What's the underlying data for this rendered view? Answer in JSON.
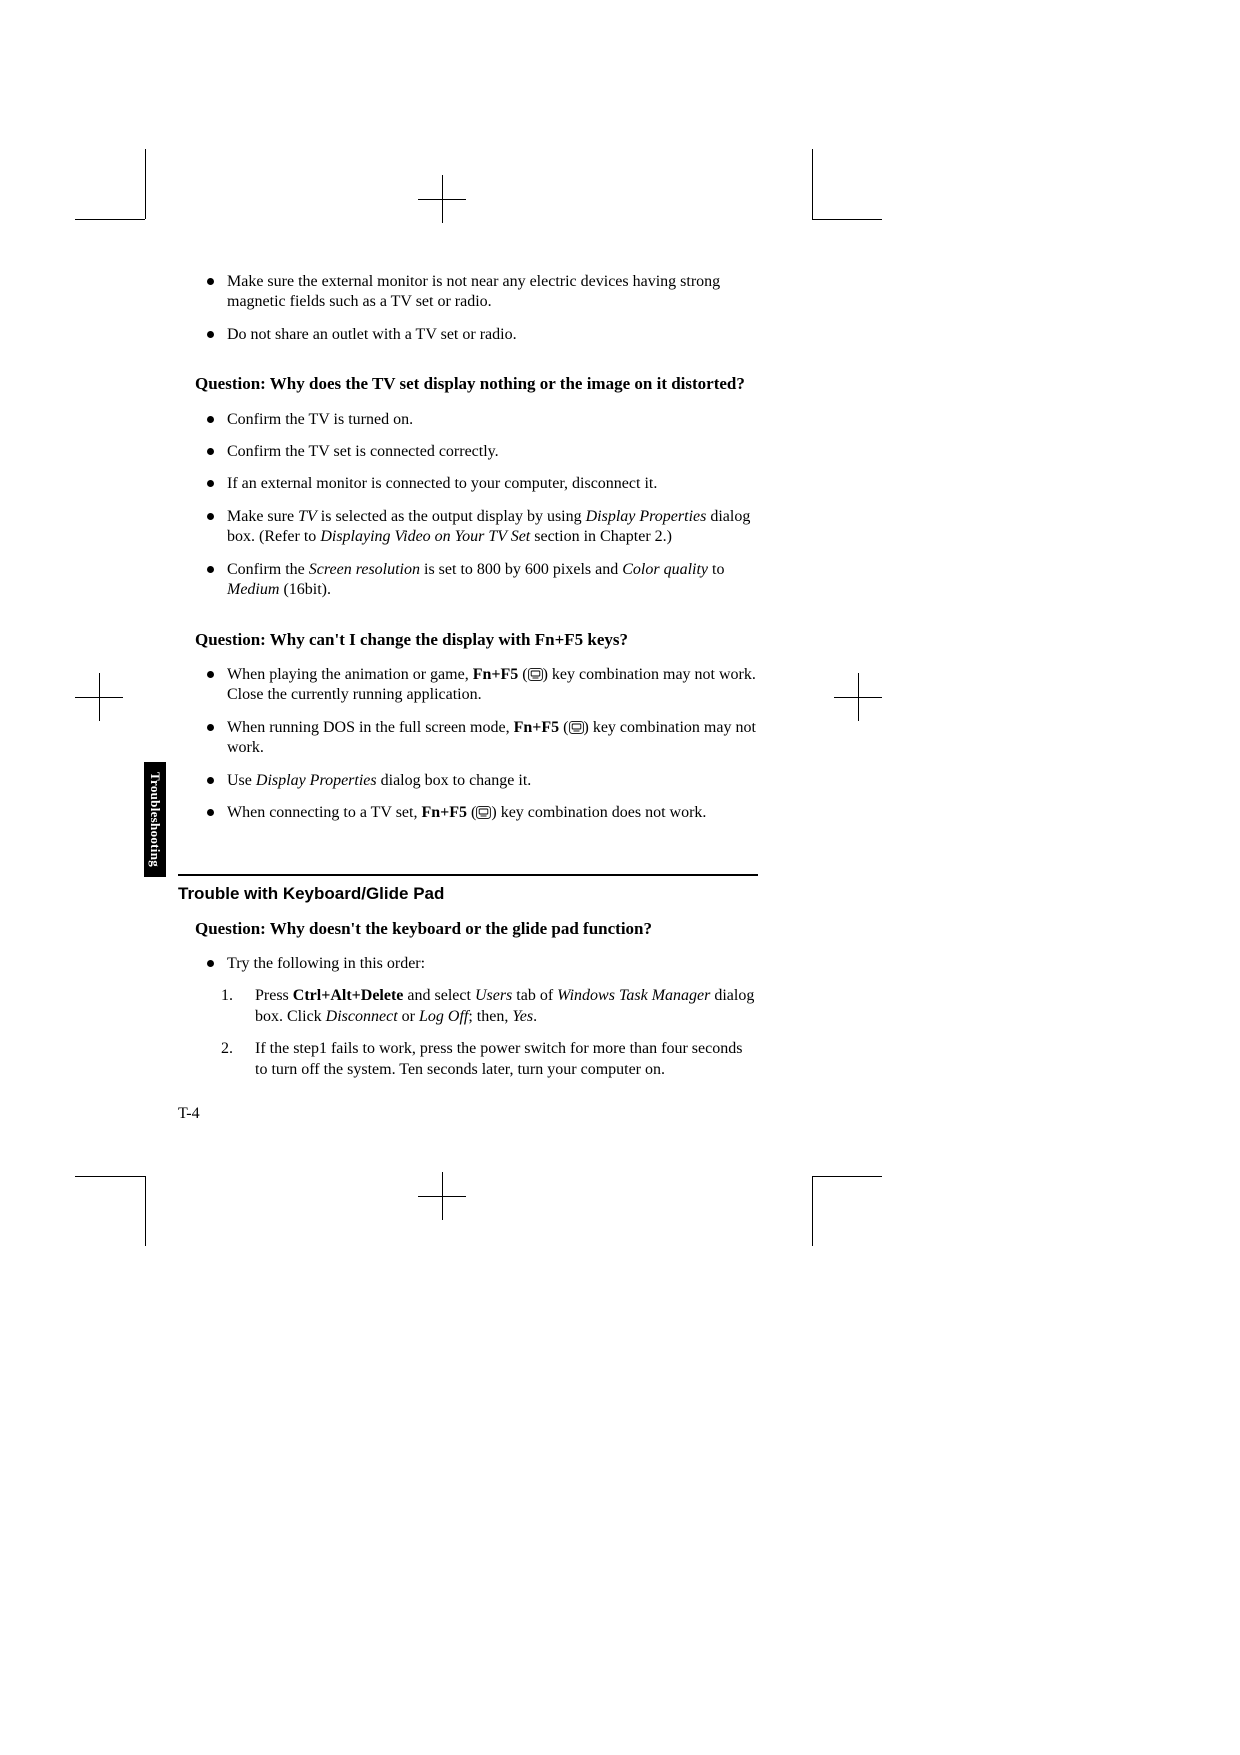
{
  "page": {
    "side_tab": "Troubleshooting",
    "page_number": "T-4"
  },
  "intro_bullets": [
    {
      "html": "Make sure the external monitor is not near any electric devices having strong magnetic fields such as a TV set or radio."
    },
    {
      "html": "Do not share an outlet with a TV set or radio."
    }
  ],
  "q1": {
    "title": "Question: Why does the TV set display nothing or the image on it distorted?",
    "bullets": [
      {
        "html": "Confirm the TV is turned on."
      },
      {
        "html": "Confirm the TV set is connected correctly."
      },
      {
        "html": "If an external monitor is connected to your computer, disconnect it."
      },
      {
        "html": "Make sure <em>TV</em> is selected as the output display by using <em>Display Properties</em> dialog box. (Refer to <em>Displaying Video on Your TV Set</em> section in Chapter 2.)"
      },
      {
        "html": "Confirm the <em>Screen resolution</em> is set to 800 by 600 pixels and <em>Color quality</em> to <em>Medium</em> (16bit)."
      }
    ]
  },
  "q2": {
    "title": "Question: Why can't I change the display with Fn+F5 keys?",
    "bullets": [
      {
        "html": "When playing the animation or game, <b>Fn+F5</b> ({ICON}) key combination may not work. Close the currently running application."
      },
      {
        "html": "When running DOS in the full screen mode, <b>Fn+F5</b> ({ICON}) key combination may not work."
      },
      {
        "html": "Use <em>Display Properties</em> dialog box to change it."
      },
      {
        "html": "When connecting to a TV set, <b>Fn+F5</b> ({ICON}) key combination does not work."
      }
    ]
  },
  "section2": {
    "title": "Trouble with Keyboard/Glide Pad"
  },
  "q3": {
    "title": "Question: Why doesn't the keyboard or the glide pad function?",
    "bullets": [
      {
        "html": "Try the following in this order:"
      }
    ],
    "steps": [
      {
        "n": "1.",
        "html": "Press <b>Ctrl+Alt+Delete</b> and select <em>Users</em> tab of <em>Windows Task Manager</em> dialog box. Click <em>Disconnect</em> or <em>Log Off</em>; then, <em>Yes</em>."
      },
      {
        "n": "2.",
        "html": "If the step1 fails to work, press the power switch for more than four seconds to turn off the system. Ten seconds later, turn your computer on."
      }
    ]
  },
  "icon_svg": "<svg class=\"key-icon\" width=\"15\" height=\"13\" viewBox=\"0 0 15 13\"><rect x=\"0.6\" y=\"0.6\" width=\"13.8\" height=\"11.8\" rx=\"2.5\" ry=\"2.5\" fill=\"none\" stroke=\"#000\" stroke-width=\"0.9\"/><rect x=\"3.2\" y=\"3\" width=\"8.6\" height=\"5\" rx=\"0.8\" fill=\"none\" stroke=\"#000\" stroke-width=\"0.9\"/><line x1=\"4.5\" y1=\"10\" x2=\"10.5\" y2=\"10\" stroke=\"#000\" stroke-width=\"0.9\"/></svg>"
}
